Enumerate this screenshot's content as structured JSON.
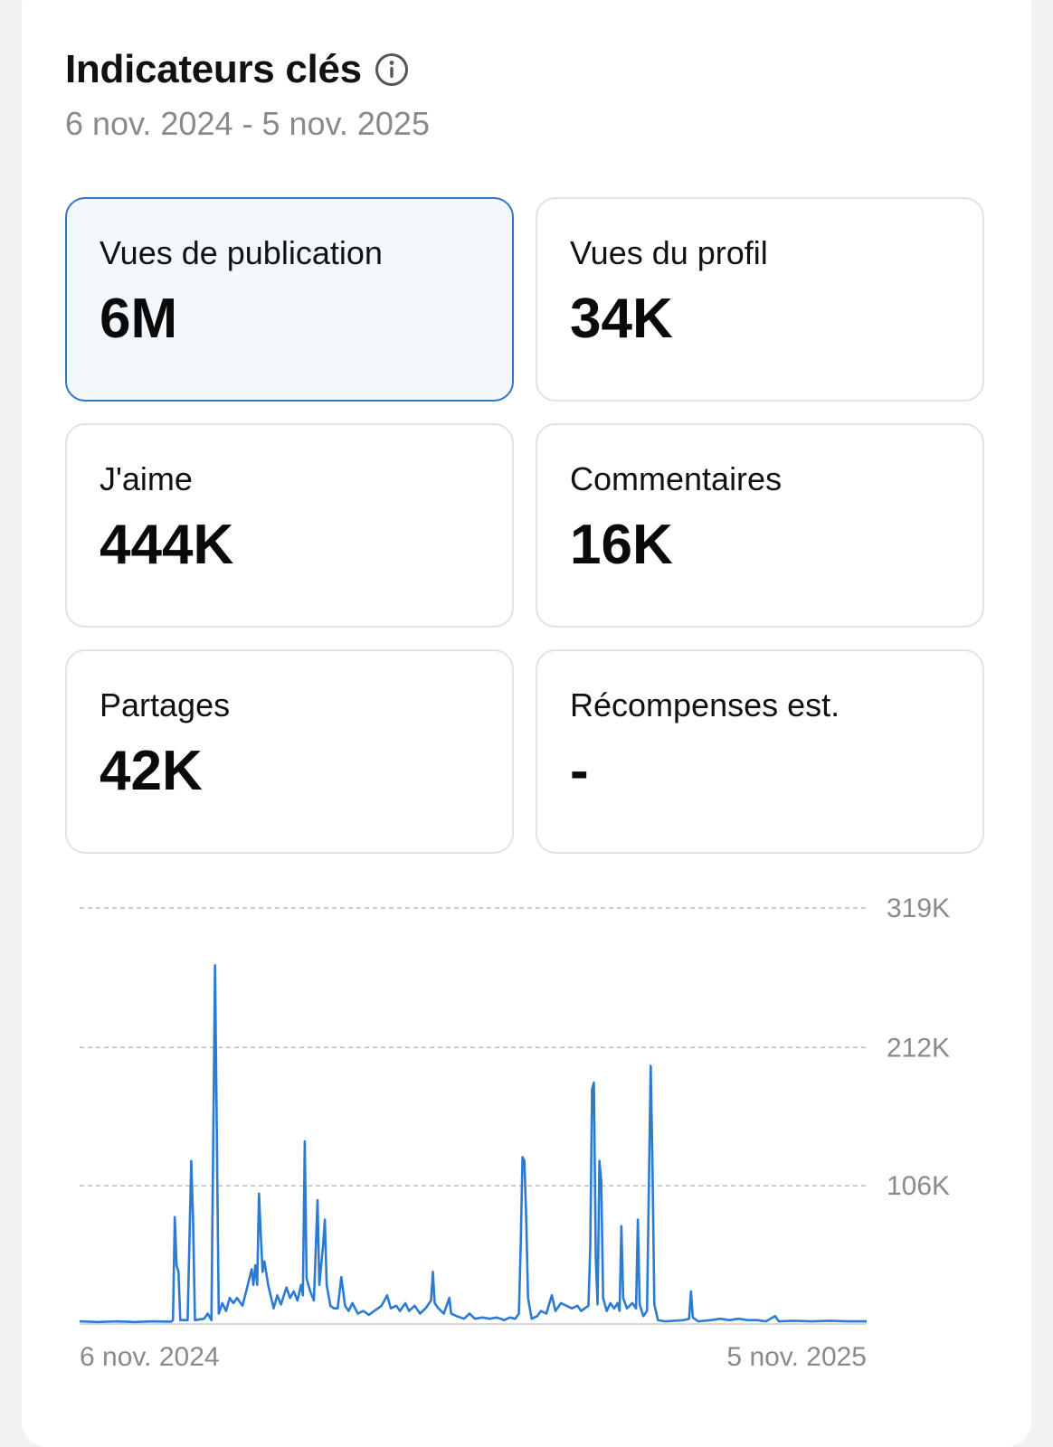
{
  "header": {
    "title": "Indicateurs clés",
    "info_icon": "info-circle-icon",
    "date_range": "6 nov. 2024 - 5 nov. 2025"
  },
  "metrics": [
    {
      "label": "Vues de publication",
      "value": "6M",
      "selected": true
    },
    {
      "label": "Vues du profil",
      "value": "34K",
      "selected": false
    },
    {
      "label": "J'aime",
      "value": "444K",
      "selected": false
    },
    {
      "label": "Commentaires",
      "value": "16K",
      "selected": false
    },
    {
      "label": "Partages",
      "value": "42K",
      "selected": false
    },
    {
      "label": "Récompenses est.",
      "value": "-",
      "selected": false
    }
  ],
  "colors": {
    "accent": "#2f78c4",
    "line": "#2b7bd3",
    "muted_text": "#8a8a8a"
  },
  "chart_data": {
    "type": "line",
    "x_start_label": "6 nov. 2024",
    "x_end_label": "5 nov. 2025",
    "y_tick_labels": [
      "319K",
      "212K",
      "106K"
    ],
    "y_ticks": [
      319000,
      212000,
      106000
    ],
    "ylim": [
      0,
      319000
    ],
    "grid": true,
    "points": [
      [
        0,
        2000
      ],
      [
        20,
        1500
      ],
      [
        40,
        2000
      ],
      [
        60,
        1500
      ],
      [
        80,
        2000
      ],
      [
        100,
        1800
      ],
      [
        102,
        3000
      ],
      [
        104,
        82000
      ],
      [
        106,
        45000
      ],
      [
        108,
        40000
      ],
      [
        110,
        3000
      ],
      [
        118,
        3000
      ],
      [
        122,
        125000
      ],
      [
        124,
        80000
      ],
      [
        126,
        3000
      ],
      [
        136,
        4000
      ],
      [
        140,
        8000
      ],
      [
        144,
        3000
      ],
      [
        148,
        275000
      ],
      [
        152,
        8000
      ],
      [
        156,
        16000
      ],
      [
        160,
        10000
      ],
      [
        164,
        20000
      ],
      [
        168,
        16000
      ],
      [
        172,
        20000
      ],
      [
        178,
        14000
      ],
      [
        182,
        25000
      ],
      [
        188,
        42000
      ],
      [
        190,
        30000
      ],
      [
        192,
        45000
      ],
      [
        194,
        30000
      ],
      [
        196,
        100000
      ],
      [
        198,
        68000
      ],
      [
        200,
        40000
      ],
      [
        202,
        48000
      ],
      [
        206,
        30000
      ],
      [
        212,
        12000
      ],
      [
        216,
        22000
      ],
      [
        220,
        15000
      ],
      [
        226,
        28000
      ],
      [
        230,
        20000
      ],
      [
        234,
        25000
      ],
      [
        238,
        18000
      ],
      [
        242,
        30000
      ],
      [
        244,
        22000
      ],
      [
        246,
        140000
      ],
      [
        248,
        35000
      ],
      [
        252,
        25000
      ],
      [
        256,
        18000
      ],
      [
        260,
        95000
      ],
      [
        262,
        30000
      ],
      [
        266,
        60000
      ],
      [
        268,
        80000
      ],
      [
        270,
        30000
      ],
      [
        274,
        14000
      ],
      [
        278,
        12000
      ],
      [
        282,
        12000
      ],
      [
        286,
        36000
      ],
      [
        290,
        14000
      ],
      [
        294,
        10000
      ],
      [
        298,
        16000
      ],
      [
        304,
        8000
      ],
      [
        310,
        10000
      ],
      [
        316,
        7000
      ],
      [
        322,
        10000
      ],
      [
        330,
        14000
      ],
      [
        336,
        22000
      ],
      [
        340,
        12000
      ],
      [
        346,
        14000
      ],
      [
        350,
        10000
      ],
      [
        356,
        16000
      ],
      [
        360,
        10000
      ],
      [
        366,
        14000
      ],
      [
        372,
        8000
      ],
      [
        378,
        12000
      ],
      [
        384,
        18000
      ],
      [
        386,
        40000
      ],
      [
        388,
        16000
      ],
      [
        392,
        12000
      ],
      [
        398,
        8000
      ],
      [
        404,
        20000
      ],
      [
        406,
        8000
      ],
      [
        412,
        6000
      ],
      [
        420,
        4000
      ],
      [
        426,
        8000
      ],
      [
        432,
        4000
      ],
      [
        440,
        5000
      ],
      [
        448,
        4000
      ],
      [
        456,
        5000
      ],
      [
        464,
        3000
      ],
      [
        470,
        5000
      ],
      [
        476,
        4000
      ],
      [
        480,
        8000
      ],
      [
        482,
        60000
      ],
      [
        484,
        128000
      ],
      [
        486,
        125000
      ],
      [
        488,
        80000
      ],
      [
        490,
        20000
      ],
      [
        494,
        4000
      ],
      [
        500,
        6000
      ],
      [
        504,
        10000
      ],
      [
        510,
        8000
      ],
      [
        516,
        22000
      ],
      [
        520,
        10000
      ],
      [
        526,
        16000
      ],
      [
        532,
        14000
      ],
      [
        538,
        12000
      ],
      [
        544,
        14000
      ],
      [
        548,
        10000
      ],
      [
        552,
        12000
      ],
      [
        556,
        14000
      ],
      [
        558,
        60000
      ],
      [
        560,
        180000
      ],
      [
        562,
        185000
      ],
      [
        564,
        50000
      ],
      [
        566,
        15000
      ],
      [
        568,
        125000
      ],
      [
        570,
        110000
      ],
      [
        572,
        20000
      ],
      [
        576,
        10000
      ],
      [
        580,
        16000
      ],
      [
        584,
        12000
      ],
      [
        588,
        16000
      ],
      [
        590,
        10000
      ],
      [
        592,
        75000
      ],
      [
        594,
        20000
      ],
      [
        598,
        12000
      ],
      [
        604,
        16000
      ],
      [
        608,
        12000
      ],
      [
        610,
        80000
      ],
      [
        612,
        15000
      ],
      [
        616,
        6000
      ],
      [
        620,
        10000
      ],
      [
        624,
        198000
      ],
      [
        626,
        120000
      ],
      [
        628,
        15000
      ],
      [
        632,
        3000
      ],
      [
        640,
        2000
      ],
      [
        650,
        2500
      ],
      [
        660,
        3000
      ],
      [
        666,
        4000
      ],
      [
        668,
        25000
      ],
      [
        670,
        5000
      ],
      [
        676,
        2000
      ],
      [
        690,
        3000
      ],
      [
        700,
        4000
      ],
      [
        710,
        3000
      ],
      [
        720,
        4000
      ],
      [
        730,
        3000
      ],
      [
        740,
        3000
      ],
      [
        750,
        2000
      ],
      [
        760,
        6000
      ],
      [
        764,
        2000
      ],
      [
        780,
        2500
      ],
      [
        800,
        2000
      ],
      [
        820,
        2500
      ],
      [
        840,
        2000
      ],
      [
        860,
        2000
      ]
    ],
    "x_domain": [
      0,
      860
    ]
  }
}
